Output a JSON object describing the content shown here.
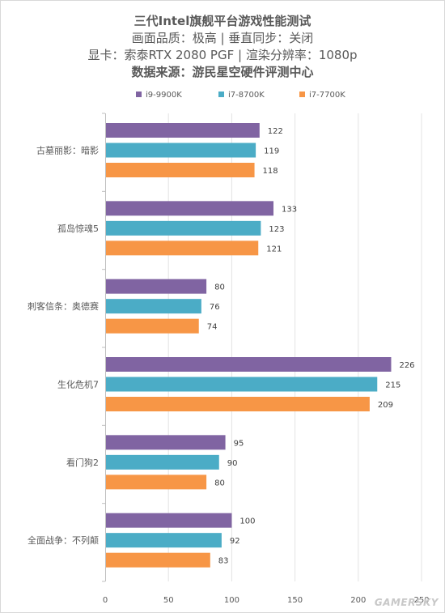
{
  "titles": {
    "main": "三代Intel旗舰平台游戏性能测试",
    "line2": "画面品质：极高 | 垂直同步：关闭",
    "line3": "显卡：索泰RTX 2080 PGF | 渲染分辨率：1080p",
    "source": "数据来源：游民星空硬件评测中心"
  },
  "watermark": "GAMERSKY",
  "chart_data": {
    "type": "bar",
    "orientation": "horizontal",
    "title": "三代Intel旗舰平台游戏性能测试",
    "xlabel": "",
    "ylabel": "",
    "xlim": [
      0,
      250
    ],
    "x_ticks": [
      0,
      50,
      100,
      150,
      200,
      250
    ],
    "grid": true,
    "legend_position": "top",
    "categories": [
      "古墓丽影：暗影",
      "孤岛惊魂5",
      "刺客信条：奥德赛",
      "生化危机7",
      "看门狗2",
      "全面战争：不列颠"
    ],
    "series": [
      {
        "name": "i9-9900K",
        "color": "#8064a2",
        "values": [
          122,
          133,
          80,
          226,
          95,
          100
        ]
      },
      {
        "name": "i7-8700K",
        "color": "#4bacc6",
        "values": [
          119,
          123,
          76,
          215,
          90,
          92
        ]
      },
      {
        "name": "i7-7700K",
        "color": "#f79646",
        "values": [
          118,
          121,
          74,
          209,
          80,
          83
        ]
      }
    ]
  }
}
